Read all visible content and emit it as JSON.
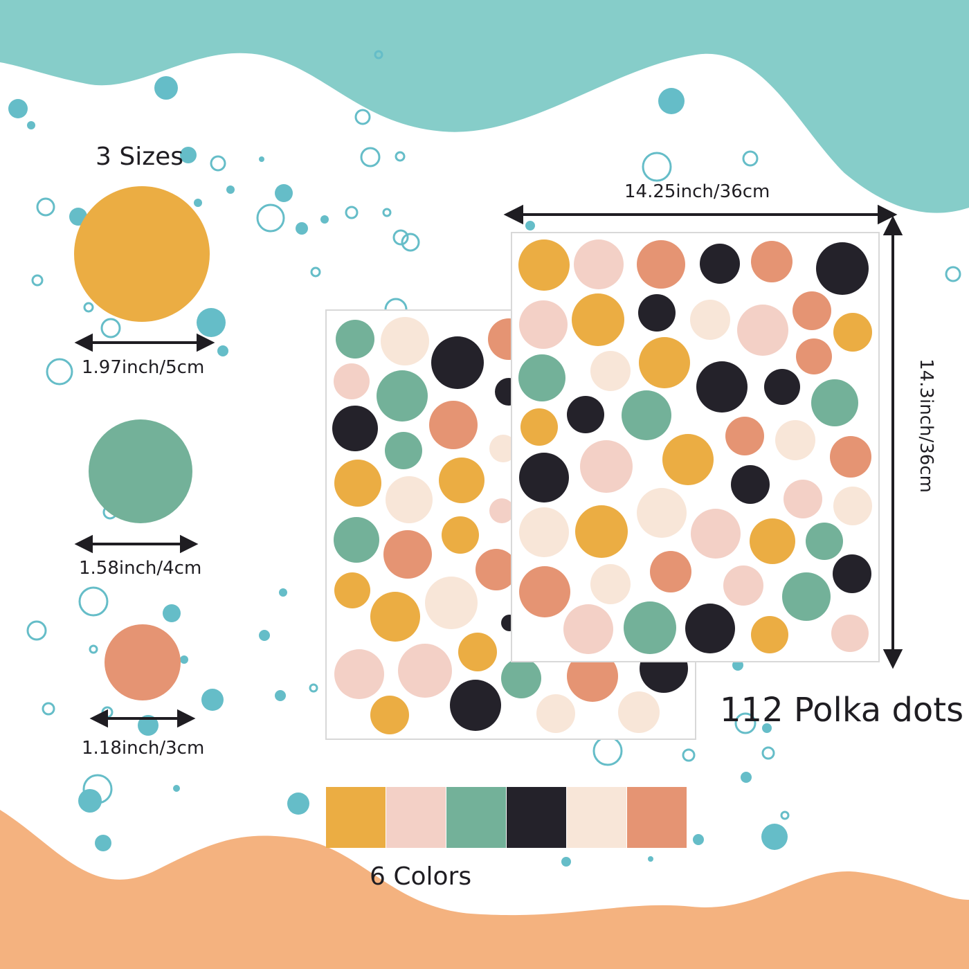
{
  "labels": {
    "sizes_title": "3 Sizes",
    "size_large": "1.97inch/5cm",
    "size_medium": "1.58inch/4cm",
    "size_small": "1.18inch/3cm",
    "sheet_width": "14.25inch/36cm",
    "sheet_height": "14.3inch/36cm",
    "dot_count": "112 Polka dots",
    "colors_title": "6 Colors"
  },
  "colors": {
    "mustard": "#ebad43",
    "blush": "#f3d0c6",
    "sage": "#73b199",
    "black": "#24222a",
    "cream": "#f8e6d8",
    "coral": "#e59473",
    "teal": "#65bdc8",
    "teal_wave": "#86cdc9",
    "orange_wave": "#f4b27f"
  },
  "palette": [
    "mustard",
    "blush",
    "sage",
    "black",
    "cream",
    "coral"
  ],
  "size_samples": [
    {
      "name": "large",
      "color": "mustard"
    },
    {
      "name": "medium",
      "color": "sage"
    },
    {
      "name": "small",
      "color": "coral"
    }
  ],
  "icons": [
    "double-arrow-icon"
  ]
}
